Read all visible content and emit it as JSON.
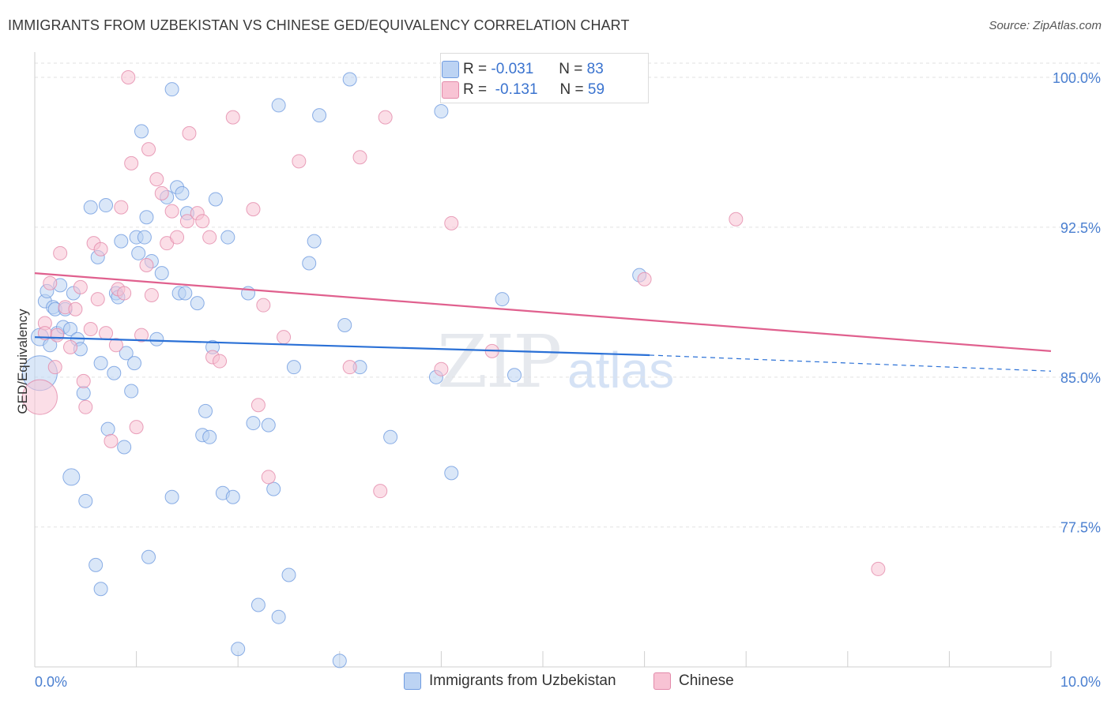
{
  "title": "IMMIGRANTS FROM UZBEKISTAN VS CHINESE GED/EQUIVALENCY CORRELATION CHART",
  "source": "Source: ZipAtlas.com",
  "watermark": {
    "zip": "ZIP",
    "atlas": "atlas"
  },
  "legend": {
    "r_label": "R =",
    "n_label": "N =",
    "series": [
      {
        "r": "-0.031",
        "n": "83"
      },
      {
        "r": "-0.131",
        "n": "59"
      }
    ]
  },
  "colors": {
    "blue_fill": "#bcd3f3",
    "blue_stroke": "#6f9be0",
    "blue_line": "#2a70d6",
    "pink_fill": "#f8c3d4",
    "pink_stroke": "#e38aaa",
    "pink_line": "#e0608e",
    "grid": "#e2e2e2",
    "tick_text": "#4a7fd0"
  },
  "chart_data": {
    "type": "scatter",
    "title": "IMMIGRANTS FROM UZBEKISTAN VS CHINESE GED/EQUIVALENCY CORRELATION CHART",
    "xlabel": "",
    "ylabel": "GED/Equivalency",
    "xlim": [
      0,
      10
    ],
    "ylim": [
      70.5,
      101.5
    ],
    "x_tick_labels": [
      "0.0%",
      "10.0%"
    ],
    "y_ticks": [
      77.5,
      85.0,
      92.5,
      100.0
    ],
    "y_tick_labels": [
      "77.5%",
      "85.0%",
      "92.5%",
      "100.0%"
    ],
    "grid": true,
    "legend_position": "top-center",
    "series": [
      {
        "name": "Immigrants from Uzbekistan",
        "trend": {
          "x0": 0.0,
          "y0": 87.0,
          "x1": 6.05,
          "y1": 86.1,
          "dashed_to_x": 10.0,
          "dashed_to_y": 85.3
        },
        "points": [
          [
            0.05,
            85.2
          ],
          [
            0.05,
            87.0
          ],
          [
            0.1,
            88.8
          ],
          [
            0.12,
            89.3
          ],
          [
            0.15,
            86.6
          ],
          [
            0.18,
            88.5
          ],
          [
            0.2,
            88.4
          ],
          [
            0.22,
            87.2
          ],
          [
            0.25,
            89.6
          ],
          [
            0.28,
            87.5
          ],
          [
            0.3,
            88.4
          ],
          [
            0.35,
            87.4
          ],
          [
            0.38,
            89.2
          ],
          [
            0.42,
            86.9
          ],
          [
            0.45,
            86.4
          ],
          [
            0.48,
            84.2
          ],
          [
            0.5,
            78.8
          ],
          [
            0.55,
            93.5
          ],
          [
            0.6,
            75.6
          ],
          [
            0.62,
            91.0
          ],
          [
            0.65,
            85.7
          ],
          [
            0.7,
            93.6
          ],
          [
            0.72,
            82.4
          ],
          [
            0.78,
            85.2
          ],
          [
            0.8,
            89.2
          ],
          [
            0.82,
            89.0
          ],
          [
            0.85,
            91.8
          ],
          [
            0.88,
            81.5
          ],
          [
            0.9,
            86.2
          ],
          [
            0.95,
            84.3
          ],
          [
            0.98,
            85.7
          ],
          [
            1.0,
            92.0
          ],
          [
            1.02,
            91.2
          ],
          [
            1.05,
            97.3
          ],
          [
            1.08,
            92.0
          ],
          [
            1.1,
            93.0
          ],
          [
            1.12,
            76.0
          ],
          [
            1.15,
            90.8
          ],
          [
            1.2,
            86.9
          ],
          [
            1.25,
            90.2
          ],
          [
            1.3,
            94.0
          ],
          [
            1.35,
            79.0
          ],
          [
            1.4,
            94.5
          ],
          [
            1.42,
            89.2
          ],
          [
            1.45,
            94.2
          ],
          [
            1.48,
            89.2
          ],
          [
            1.5,
            93.2
          ],
          [
            1.6,
            88.7
          ],
          [
            1.65,
            82.1
          ],
          [
            1.68,
            83.3
          ],
          [
            1.72,
            82.0
          ],
          [
            1.75,
            86.5
          ],
          [
            1.78,
            93.9
          ],
          [
            1.85,
            79.2
          ],
          [
            1.9,
            92.0
          ],
          [
            1.95,
            79.0
          ],
          [
            2.0,
            71.4
          ],
          [
            2.1,
            89.2
          ],
          [
            2.15,
            82.7
          ],
          [
            2.2,
            73.6
          ],
          [
            2.3,
            82.6
          ],
          [
            2.35,
            79.4
          ],
          [
            2.4,
            73.0
          ],
          [
            2.5,
            75.1
          ],
          [
            2.55,
            85.5
          ],
          [
            2.7,
            90.7
          ],
          [
            2.75,
            91.8
          ],
          [
            2.8,
            98.1
          ],
          [
            3.0,
            70.8
          ],
          [
            3.05,
            87.6
          ],
          [
            3.1,
            99.9
          ],
          [
            3.2,
            85.5
          ],
          [
            3.5,
            82.0
          ],
          [
            3.95,
            85.0
          ],
          [
            4.1,
            80.2
          ],
          [
            4.6,
            88.9
          ],
          [
            4.72,
            85.1
          ],
          [
            5.95,
            90.1
          ],
          [
            2.4,
            98.6
          ],
          [
            1.35,
            99.4
          ],
          [
            0.36,
            80.0
          ],
          [
            0.65,
            74.4
          ],
          [
            4.0,
            98.3
          ]
        ]
      },
      {
        "name": "Chinese",
        "trend": {
          "x0": 0.0,
          "y0": 90.2,
          "x1": 10.0,
          "y1": 86.3
        },
        "points": [
          [
            0.05,
            84.0
          ],
          [
            0.1,
            87.7
          ],
          [
            0.15,
            89.7
          ],
          [
            0.22,
            87.1
          ],
          [
            0.25,
            91.2
          ],
          [
            0.3,
            88.5
          ],
          [
            0.35,
            86.5
          ],
          [
            0.4,
            88.4
          ],
          [
            0.45,
            89.5
          ],
          [
            0.48,
            84.8
          ],
          [
            0.5,
            83.5
          ],
          [
            0.55,
            87.4
          ],
          [
            0.58,
            91.7
          ],
          [
            0.62,
            88.9
          ],
          [
            0.65,
            91.4
          ],
          [
            0.7,
            87.2
          ],
          [
            0.75,
            81.8
          ],
          [
            0.8,
            86.6
          ],
          [
            0.82,
            89.4
          ],
          [
            0.85,
            93.5
          ],
          [
            0.88,
            89.2
          ],
          [
            0.92,
            100.0
          ],
          [
            0.95,
            95.7
          ],
          [
            1.0,
            82.5
          ],
          [
            1.05,
            87.1
          ],
          [
            1.1,
            90.6
          ],
          [
            1.12,
            96.4
          ],
          [
            1.15,
            89.1
          ],
          [
            1.2,
            94.9
          ],
          [
            1.25,
            94.2
          ],
          [
            1.3,
            91.7
          ],
          [
            1.35,
            93.3
          ],
          [
            1.4,
            92.0
          ],
          [
            1.5,
            92.8
          ],
          [
            1.52,
            97.2
          ],
          [
            1.6,
            93.2
          ],
          [
            1.65,
            92.8
          ],
          [
            1.72,
            92.0
          ],
          [
            1.75,
            86.0
          ],
          [
            1.82,
            85.8
          ],
          [
            1.95,
            98.0
          ],
          [
            2.15,
            93.4
          ],
          [
            2.2,
            83.6
          ],
          [
            2.25,
            88.6
          ],
          [
            2.3,
            80.0
          ],
          [
            2.45,
            87.0
          ],
          [
            2.6,
            95.8
          ],
          [
            3.1,
            85.5
          ],
          [
            3.2,
            96.0
          ],
          [
            3.4,
            79.3
          ],
          [
            3.45,
            98.0
          ],
          [
            4.0,
            85.4
          ],
          [
            4.1,
            92.7
          ],
          [
            4.5,
            86.3
          ],
          [
            6.0,
            89.9
          ],
          [
            6.9,
            92.9
          ],
          [
            8.3,
            75.4
          ],
          [
            0.1,
            87.2
          ],
          [
            0.2,
            85.5
          ]
        ]
      }
    ]
  },
  "bottom_legend": [
    "Immigrants from Uzbekistan",
    "Chinese"
  ]
}
